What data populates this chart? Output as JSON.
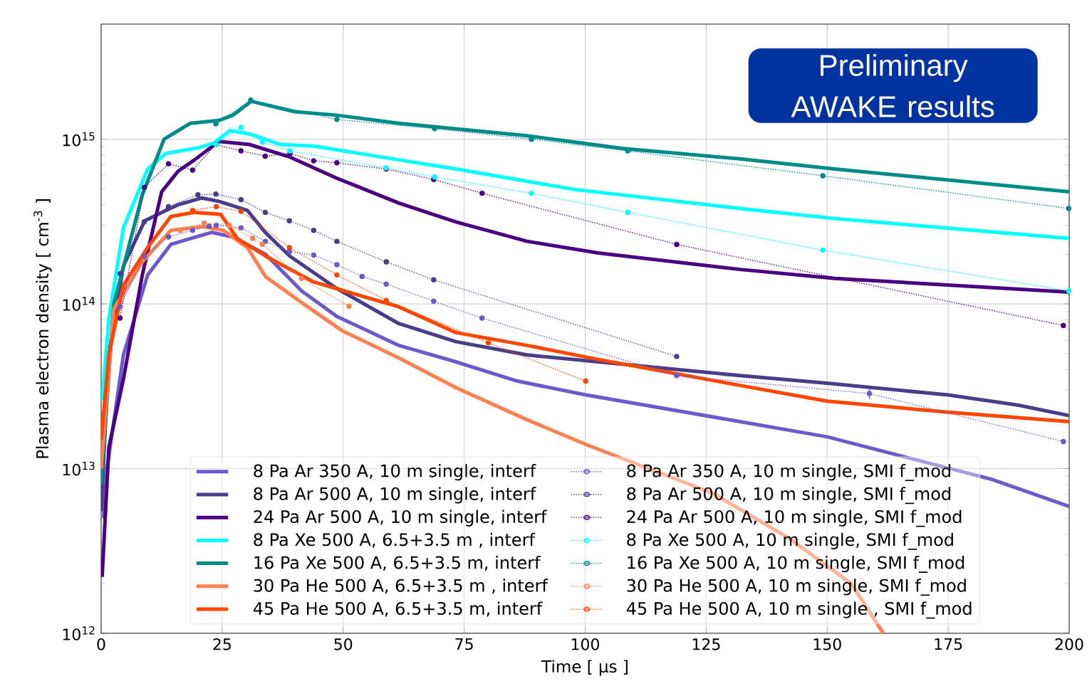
{
  "chart_data": {
    "type": "line",
    "xlabel": "Time [ μs ]",
    "ylabel": "Plasma electron density [ cm$^{-3}$ ]",
    "annotations": [
      "Preliminary AWAKE results"
    ],
    "log": "y",
    "grid": true,
    "legend": "bottom",
    "xlim": [
      0,
      200
    ],
    "xticks": [
      0,
      25,
      50,
      75,
      100,
      125,
      150,
      175,
      200
    ],
    "ylim": [
      1000000000000.0,
      5000000000000000.0
    ],
    "yticks": [
      {
        "value": 1000000000000.0,
        "label": "10$^{12}$"
      },
      {
        "value": 10000000000000.0,
        "label": "10$^{13}$"
      },
      {
        "value": 100000000000000.0,
        "label": "10$^{14}$"
      },
      {
        "value": 1000000000000000.0,
        "label": "10$^{15}$"
      }
    ],
    "series": [
      {
        "name": "8 Pa Ar 350 A, 10 m single, interf",
        "color": "#6a5acd",
        "line_style": "solid",
        "marker": "none",
        "x": [
          0.5,
          1.2,
          4.6,
          9.6,
          14.4,
          22.8,
          27.2,
          34,
          41.4,
          48.7,
          61.5,
          73.3,
          86,
          100.2,
          132,
          150,
          184,
          200
        ],
        "values": [
          5000000000000.0,
          10000000000000.0,
          49000000000000.0,
          150000000000000.0,
          230000000000000.0,
          272000000000000.0,
          255000000000000.0,
          200000000000000.0,
          120000000000000.0,
          84000000000000.0,
          56000000000000.0,
          44500000000000.0,
          34000000000000.0,
          28000000000000.0,
          19300000000000.0,
          15600000000000.0,
          8600000000000.0,
          5900000000000.0
        ]
      },
      {
        "name": "8 Pa Ar 500 A, 10 m single, interf",
        "color": "#483d8b",
        "line_style": "solid",
        "marker": "none",
        "x": [
          0,
          1.6,
          4.6,
          9,
          13.4,
          15.9,
          20.8,
          24.3,
          30.2,
          34,
          39,
          48.7,
          61.5,
          73.3,
          88,
          102.7,
          132,
          150,
          175,
          189.4,
          200
        ],
        "values": [
          5500000000000.0,
          50000000000000.0,
          170000000000000.0,
          320000000000000.0,
          370000000000000.0,
          400000000000000.0,
          440000000000000.0,
          420000000000000.0,
          370000000000000.0,
          270000000000000.0,
          195000000000000.0,
          124000000000000.0,
          76000000000000.0,
          59000000000000.0,
          49000000000000.0,
          44500000000000.0,
          36700000000000.0,
          33000000000000.0,
          28000000000000.0,
          24300000000000.0,
          21000000000000.0
        ]
      },
      {
        "name": "24 Pa Ar 500 A, 10 m single, interf",
        "color": "#4b0082",
        "line_style": "solid",
        "marker": "none",
        "x": [
          0.2,
          1.6,
          4.6,
          8.5,
          12.5,
          15.9,
          19.3,
          24.3,
          30.6,
          39,
          48.7,
          61.5,
          73.3,
          88,
          102.7,
          132,
          151.6,
          200
        ],
        "values": [
          2200000000000.0,
          13500000000000.0,
          35000000000000.0,
          150000000000000.0,
          480000000000000.0,
          640000000000000.0,
          750000000000000.0,
          970000000000000.0,
          930000000000000.0,
          780000000000000.0,
          580000000000000.0,
          410000000000000.0,
          315000000000000.0,
          240000000000000.0,
          204000000000000.0,
          162000000000000.0,
          143000000000000.0,
          118000000000000.0
        ]
      },
      {
        "name": "8 Pa Xe 500 A, 6.5+3.5 m , interf",
        "color": "#00ffff",
        "line_style": "solid",
        "marker": "none",
        "x": [
          0.2,
          1.6,
          4.6,
          9.6,
          13.4,
          20.3,
          23.3,
          26.6,
          31,
          37,
          43.9,
          61.5,
          73.3,
          97.9,
          132,
          151.6,
          200
        ],
        "values": [
          26000000000000.0,
          82000000000000.0,
          290000000000000.0,
          660000000000000.0,
          820000000000000.0,
          890000000000000.0,
          950000000000000.0,
          1130000000000000.0,
          1070000000000000.0,
          930000000000000.0,
          910000000000000.0,
          750000000000000.0,
          660000000000000.0,
          495000000000000.0,
          380000000000000.0,
          330000000000000.0,
          250000000000000.0
        ]
      },
      {
        "name": "16 Pa Xe 500 A, 6.5+3.5 m, interf",
        "color": "#008b8b",
        "line_style": "solid",
        "marker": "none",
        "x": [
          0,
          2.6,
          8.5,
          13,
          18.4,
          24.3,
          27.2,
          31,
          40,
          48.7,
          61.5,
          88,
          107.6,
          132,
          151.6,
          200
        ],
        "values": [
          8000000000000.0,
          100000000000000.0,
          460000000000000.0,
          1000000000000000.0,
          1250000000000000.0,
          1300000000000000.0,
          1400000000000000.0,
          1700000000000000.0,
          1470000000000000.0,
          1400000000000000.0,
          1250000000000000.0,
          1050000000000000.0,
          880000000000000.0,
          760000000000000.0,
          660000000000000.0,
          480000000000000.0
        ]
      },
      {
        "name": "30 Pa He 500 A, 6.5+3.5 m , interf",
        "color": "#ff7f50",
        "line_style": "solid",
        "marker": "none",
        "x": [
          0,
          2.6,
          8.5,
          14.4,
          20.8,
          25.2,
          30.2,
          34,
          41.4,
          49.7,
          61.5,
          73.3,
          88,
          100.2,
          126.3,
          142,
          155,
          161.6
        ],
        "values": [
          10000000000000.0,
          93000000000000.0,
          180000000000000.0,
          280000000000000.0,
          295000000000000.0,
          280000000000000.0,
          220000000000000.0,
          146000000000000.0,
          102000000000000.0,
          69000000000000.0,
          47000000000000.0,
          31000000000000.0,
          19800000000000.0,
          14000000000000.0,
          7100000000000.0,
          3800000000000.0,
          2000000000000.0,
          1000000000000.0
        ]
      },
      {
        "name": "45 Pa He 500 A, 6.5+3.5 m, interf",
        "color": "#ff4500",
        "line_style": "solid",
        "marker": "none",
        "x": [
          0,
          1.6,
          4.6,
          9.6,
          14.4,
          19.3,
          24.7,
          28.1,
          34,
          43.9,
          61.5,
          73.3,
          88,
          102.7,
          132,
          150,
          175,
          200
        ],
        "values": [
          15000000000000.0,
          49000000000000.0,
          130000000000000.0,
          220000000000000.0,
          340000000000000.0,
          360000000000000.0,
          350000000000000.0,
          250000000000000.0,
          195000000000000.0,
          136000000000000.0,
          96000000000000.0,
          67000000000000.0,
          56000000000000.0,
          46000000000000.0,
          32000000000000.0,
          25700000000000.0,
          22000000000000.0,
          19300000000000.0
        ]
      },
      {
        "name": "8 Pa Ar 350 A, 10 m single, SMI f_mod",
        "color": "#6a5acd",
        "line_style": "dotted",
        "marker": "circle",
        "x": [
          3.9,
          8.9,
          13.9,
          18.9,
          22.3,
          23.8,
          28.9,
          33.9,
          38.9,
          43.9,
          48.7,
          53.9,
          58.9,
          68.7,
          78.7,
          118.9,
          158.7,
          198.8
        ],
        "values": [
          96000000000000.0,
          195000000000000.0,
          255000000000000.0,
          280000000000000.0,
          297000000000000.0,
          300000000000000.0,
          290000000000000.0,
          240000000000000.0,
          208000000000000.0,
          198000000000000.0,
          173000000000000.0,
          147000000000000.0,
          132000000000000.0,
          104000000000000.0,
          82000000000000.0,
          36700000000000.0,
          28600000000000.0,
          14600000000000.0
        ],
        "errors": [
          null,
          null,
          null,
          null,
          null,
          null,
          null,
          null,
          null,
          null,
          null,
          null,
          null,
          null,
          null,
          null,
          2000000000000.0,
          null
        ]
      },
      {
        "name": "8 Pa Ar 500 A, 10 m single, SMI f_mod",
        "color": "#483d8b",
        "line_style": "dotted",
        "marker": "circle",
        "x": [
          3.9,
          8.9,
          13.9,
          20,
          23.7,
          28.9,
          33.9,
          38.9,
          43.9,
          48.7,
          58.9,
          68.7,
          118.9
        ],
        "values": [
          153000000000000.0,
          315000000000000.0,
          390000000000000.0,
          460000000000000.0,
          465000000000000.0,
          430000000000000.0,
          360000000000000.0,
          320000000000000.0,
          280000000000000.0,
          240000000000000.0,
          180000000000000.0,
          140000000000000.0,
          48000000000000.0
        ]
      },
      {
        "name": "24 Pa Ar 500 A, 10 m single, SMI f_mod",
        "color": "#4b0082",
        "line_style": "dotted",
        "marker": "circle",
        "x": [
          3.9,
          8.9,
          13.9,
          18.9,
          23.7,
          28.9,
          33.9,
          39,
          43.9,
          48.7,
          58.9,
          68.7,
          78.7,
          118.9,
          198.8
        ],
        "values": [
          82000000000000.0,
          510000000000000.0,
          710000000000000.0,
          650000000000000.0,
          930000000000000.0,
          850000000000000.0,
          790000000000000.0,
          820000000000000.0,
          740000000000000.0,
          720000000000000.0,
          660000000000000.0,
          570000000000000.0,
          470000000000000.0,
          230000000000000.0,
          74000000000000.0
        ]
      },
      {
        "name": "8 Pa Xe 500 A, 10 m single, SMI f_mod",
        "color": "#00ffff",
        "line_style": "dotted",
        "marker": "circle",
        "x": [
          23.7,
          28.9,
          33.3,
          39,
          58.9,
          68.9,
          88.9,
          108.8,
          149.1,
          199.9
        ],
        "values": [
          930000000000000.0,
          1180000000000000.0,
          960000000000000.0,
          850000000000000.0,
          670000000000000.0,
          590000000000000.0,
          470000000000000.0,
          360000000000000.0,
          212000000000000.0,
          120000000000000.0
        ]
      },
      {
        "name": "16 Pa Xe 500 A, 10 m single, SMI f_mod",
        "color": "#008b8b",
        "line_style": "dotted",
        "marker": "circle",
        "x": [
          23.7,
          30.9,
          48.7,
          68.9,
          88.9,
          108.8,
          149.1,
          199.9
        ],
        "values": [
          1240000000000000.0,
          1730000000000000.0,
          1320000000000000.0,
          1160000000000000.0,
          1000000000000000.0,
          850000000000000.0,
          600000000000000.0,
          380000000000000.0
        ]
      },
      {
        "name": "30 Pa He 500 A, 10 m single, SMI f_mod",
        "color": "#ff7f50",
        "line_style": "dotted",
        "marker": "circle",
        "x": [
          16.4,
          21.3,
          26.5,
          31.3,
          33.3,
          41.4,
          51.2
        ],
        "values": [
          280000000000000.0,
          310000000000000.0,
          300000000000000.0,
          250000000000000.0,
          230000000000000.0,
          143000000000000.0,
          97000000000000.0
        ]
      },
      {
        "name": "45 Pa He 500 A, 10 m single , SMI f_mod",
        "color": "#ff4500",
        "line_style": "dotted",
        "marker": "circle",
        "x": [
          18.9,
          23.8,
          28.9,
          38.9,
          48.7,
          58.9,
          80,
          100.1
        ],
        "values": [
          370000000000000.0,
          390000000000000.0,
          365000000000000.0,
          220000000000000.0,
          150000000000000.0,
          105000000000000.0,
          58000000000000.0,
          34000000000000.0
        ]
      }
    ]
  }
}
